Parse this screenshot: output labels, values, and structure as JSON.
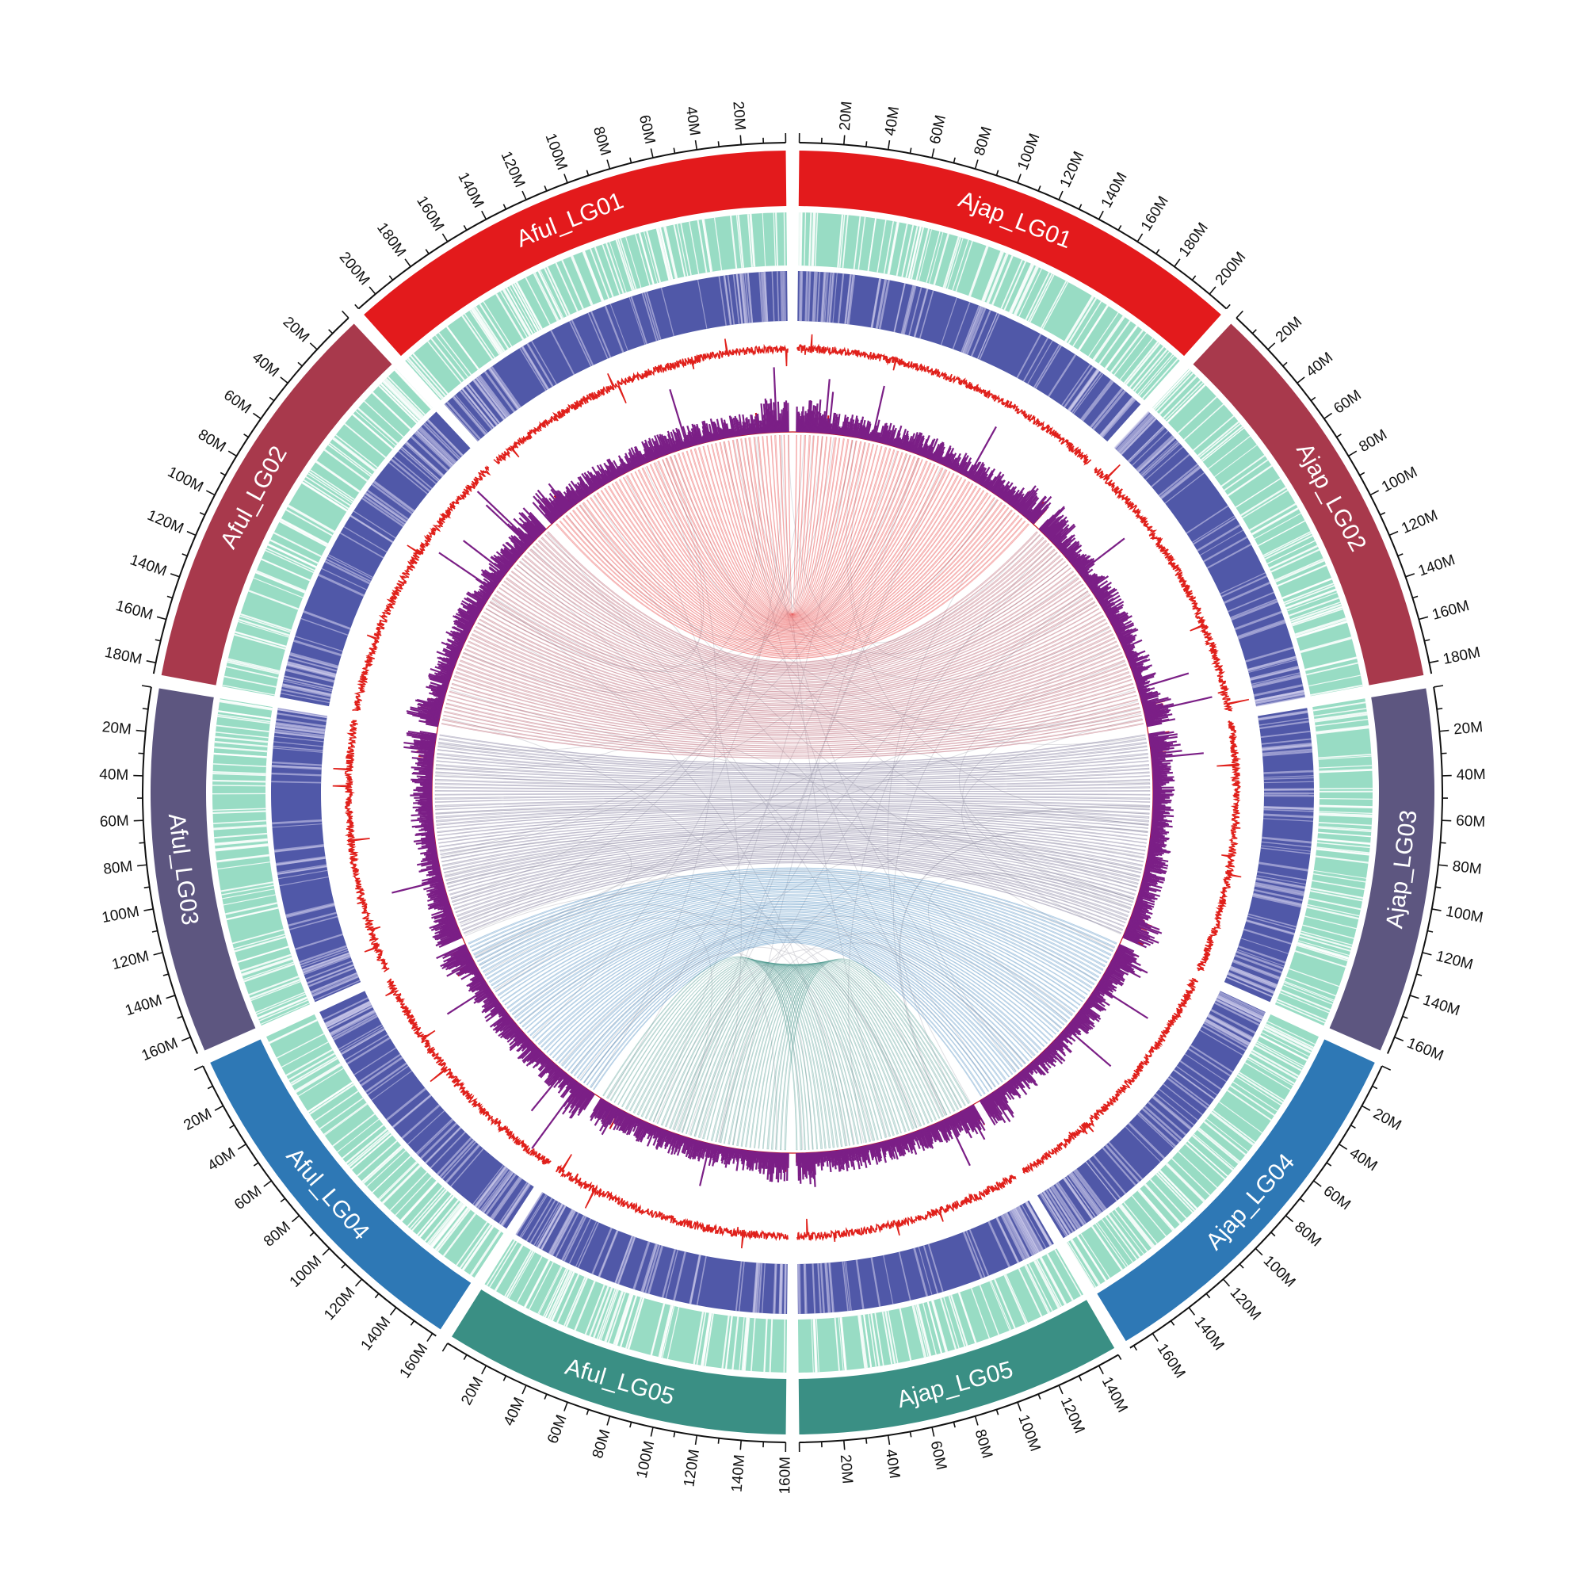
{
  "chart_data": {
    "type": "circos",
    "title": "",
    "tick_unit": "M",
    "tick_step": 20,
    "chromosomes": [
      {
        "label": "Aful_LG01",
        "length": 210,
        "color": "#e31a1c",
        "side": "left",
        "reversed": true
      },
      {
        "label": "Aful_LG02",
        "length": 185,
        "color": "#a8394c",
        "side": "left",
        "reversed": true
      },
      {
        "label": "Aful_LG03",
        "length": 168,
        "color": "#5d5680",
        "side": "left",
        "reversed": true
      },
      {
        "label": "Aful_LG04",
        "length": 162,
        "color": "#2e78b5",
        "side": "left",
        "reversed": true
      },
      {
        "label": "Aful_LG05",
        "length": 160,
        "color": "#3a8f84",
        "side": "left",
        "reversed": true
      },
      {
        "label": "Ajap_LG05",
        "length": 150,
        "color": "#3a8f84",
        "side": "right",
        "reversed": true
      },
      {
        "label": "Ajap_LG04",
        "length": 172,
        "color": "#2e78b5",
        "side": "right",
        "reversed": false
      },
      {
        "label": "Ajap_LG03",
        "length": 168,
        "color": "#5d5680",
        "side": "right",
        "reversed": false
      },
      {
        "label": "Ajap_LG02",
        "length": 185,
        "color": "#a8394c",
        "side": "right",
        "reversed": false
      },
      {
        "label": "Ajap_LG01",
        "length": 210,
        "color": "#e31a1c",
        "side": "right",
        "reversed": false
      }
    ],
    "tracks": [
      {
        "name": "",
        "type": "heatmap-stripes",
        "color": "#98dcc4"
      },
      {
        "name": "",
        "type": "heatmap-density",
        "color": "#5058a8"
      },
      {
        "name": "",
        "type": "line",
        "color": "#e0201b"
      },
      {
        "name": "",
        "type": "histogram",
        "color": "#7b1f86"
      },
      {
        "name": "",
        "type": "histogram-inner",
        "color": "#c8101a"
      }
    ],
    "synteny": [
      {
        "pair": [
          "Aful_LG01",
          "Ajap_LG01"
        ],
        "color": "#e31a1c",
        "blocks": 60
      },
      {
        "pair": [
          "Aful_LG02",
          "Ajap_LG02"
        ],
        "color": "#a8394c",
        "blocks": 55
      },
      {
        "pair": [
          "Aful_LG03",
          "Ajap_LG03"
        ],
        "color": "#5d5680",
        "blocks": 55
      },
      {
        "pair": [
          "Aful_LG04",
          "Ajap_LG04"
        ],
        "color": "#2e78b5",
        "blocks": 50
      },
      {
        "pair": [
          "Aful_LG05",
          "Ajap_LG05"
        ],
        "color": "#3a8f84",
        "blocks": 45
      }
    ],
    "background_links_color": "#bfbfc8",
    "grid": false,
    "legend": "none"
  }
}
